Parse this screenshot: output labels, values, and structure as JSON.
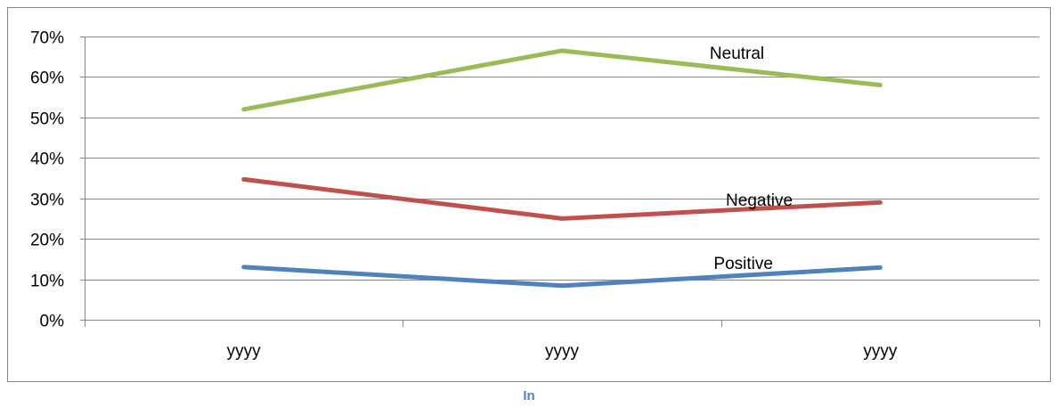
{
  "caption": "In",
  "chart_data": {
    "type": "line",
    "title": "",
    "xlabel": "",
    "ylabel": "",
    "categories": [
      "yyyy",
      "yyyy",
      "yyyy"
    ],
    "y_ticks": [
      "0%",
      "10%",
      "20%",
      "30%",
      "40%",
      "50%",
      "60%",
      "70%"
    ],
    "ylim": [
      0,
      70
    ],
    "grid": true,
    "legend": "none",
    "series": [
      {
        "name": "Neutral",
        "color": "#9bbb59",
        "values": [
          52,
          66.5,
          58
        ]
      },
      {
        "name": "Negative",
        "color": "#c0504d",
        "values": [
          34.7,
          25,
          29
        ]
      },
      {
        "name": "Positive",
        "color": "#4f81bd",
        "values": [
          13,
          8.4,
          12.9
        ]
      }
    ]
  }
}
